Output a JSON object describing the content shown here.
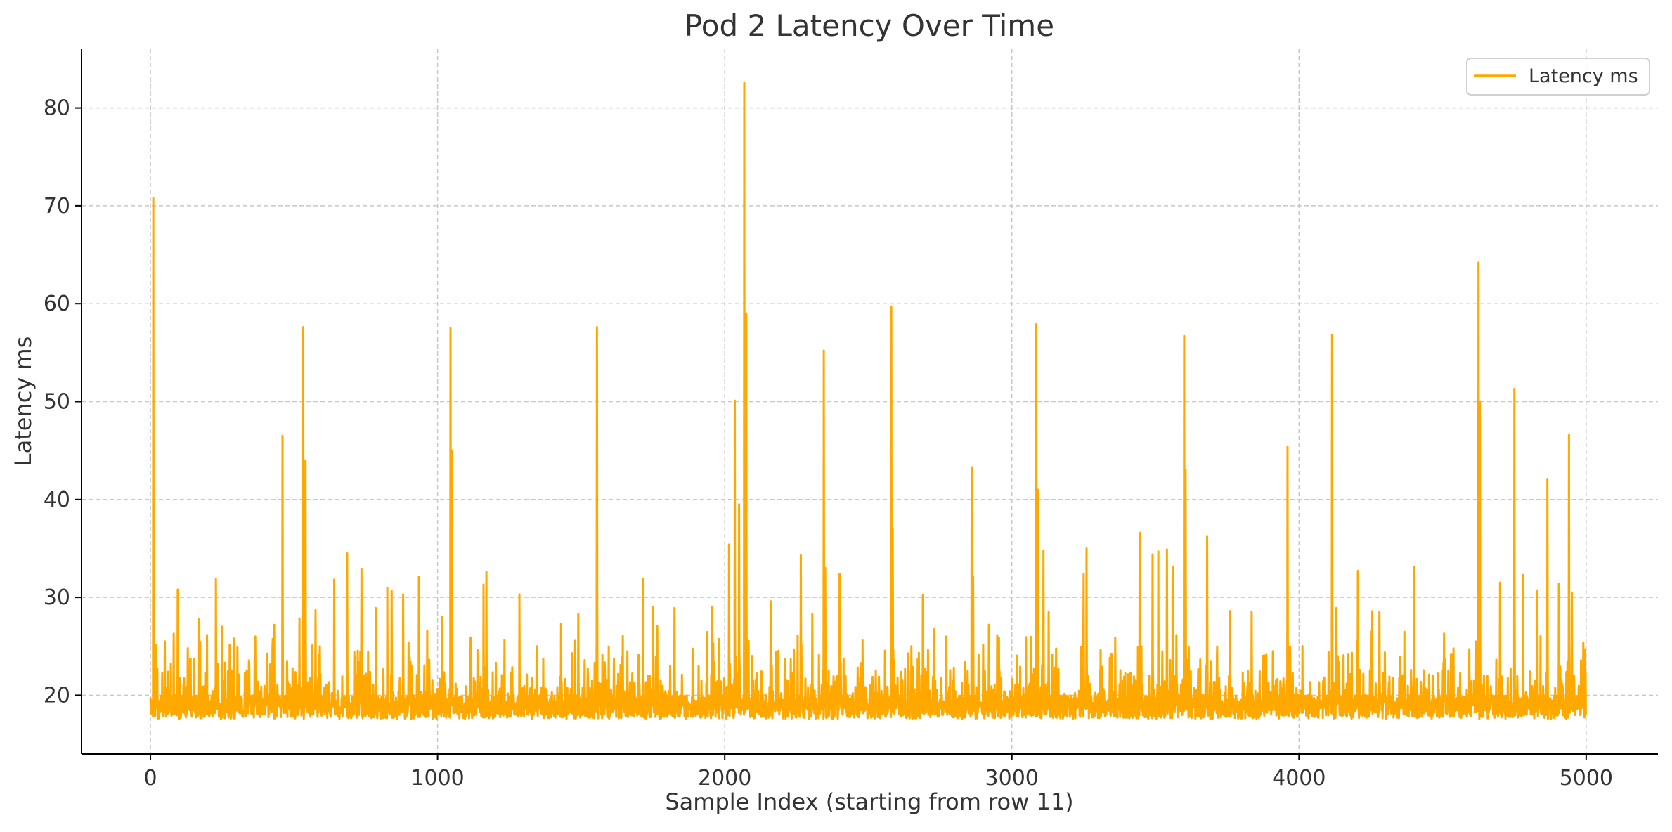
{
  "chart_data": {
    "type": "line",
    "title": "Pod 2 Latency Over Time",
    "xlabel": "Sample Index (starting from row 11)",
    "ylabel": "Latency ms",
    "xlim": [
      -240,
      5250
    ],
    "ylim": [
      14,
      86
    ],
    "xticks": [
      0,
      1000,
      2000,
      3000,
      4000,
      5000
    ],
    "yticks": [
      20,
      30,
      40,
      50,
      60,
      70,
      80
    ],
    "grid": true,
    "legend_position": "top-right",
    "series": [
      {
        "name": "Latency ms",
        "color": "#FFA800",
        "n_samples": 5000,
        "baseline_ms": 19.2,
        "min_ms": 17.2,
        "spikes": [
          [
            10,
            70.8
          ],
          [
            50,
            25.5
          ],
          [
            95,
            30.8
          ],
          [
            130,
            24.8
          ],
          [
            170,
            27.8
          ],
          [
            228,
            31.9
          ],
          [
            250,
            27.0
          ],
          [
            290,
            25.8
          ],
          [
            365,
            26.0
          ],
          [
            460,
            46.5
          ],
          [
            532,
            57.6
          ],
          [
            540,
            44.0
          ],
          [
            575,
            28.7
          ],
          [
            640,
            31.8
          ],
          [
            685,
            34.5
          ],
          [
            735,
            32.9
          ],
          [
            785,
            28.9
          ],
          [
            825,
            31.0
          ],
          [
            840,
            30.7
          ],
          [
            880,
            30.3
          ],
          [
            935,
            32.1
          ],
          [
            1015,
            28.0
          ],
          [
            1045,
            57.5
          ],
          [
            1050,
            45.0
          ],
          [
            1115,
            25.9
          ],
          [
            1160,
            31.3
          ],
          [
            1170,
            32.6
          ],
          [
            1285,
            30.3
          ],
          [
            1345,
            25.0
          ],
          [
            1430,
            27.3
          ],
          [
            1490,
            28.3
          ],
          [
            1555,
            57.6
          ],
          [
            1715,
            31.9
          ],
          [
            1750,
            29.0
          ],
          [
            1825,
            28.9
          ],
          [
            1960,
            25.3
          ],
          [
            2015,
            35.4
          ],
          [
            2035,
            50.1
          ],
          [
            2050,
            39.5
          ],
          [
            2068,
            82.6
          ],
          [
            2075,
            59.0
          ],
          [
            2160,
            29.6
          ],
          [
            2265,
            34.3
          ],
          [
            2305,
            28.3
          ],
          [
            2345,
            55.2
          ],
          [
            2350,
            33.0
          ],
          [
            2400,
            32.4
          ],
          [
            2480,
            25.6
          ],
          [
            2580,
            59.7
          ],
          [
            2585,
            37.0
          ],
          [
            2650,
            25.0
          ],
          [
            2690,
            30.2
          ],
          [
            2770,
            26.0
          ],
          [
            2860,
            43.3
          ],
          [
            2865,
            32.1
          ],
          [
            2920,
            27.2
          ],
          [
            3085,
            57.9
          ],
          [
            3090,
            41.0
          ],
          [
            3110,
            34.8
          ],
          [
            3250,
            32.4
          ],
          [
            3260,
            35.0
          ],
          [
            3360,
            25.9
          ],
          [
            3445,
            36.6
          ],
          [
            3490,
            34.4
          ],
          [
            3510,
            34.7
          ],
          [
            3540,
            34.9
          ],
          [
            3560,
            33.1
          ],
          [
            3600,
            56.7
          ],
          [
            3605,
            43.0
          ],
          [
            3680,
            36.2
          ],
          [
            3760,
            28.6
          ],
          [
            3835,
            28.5
          ],
          [
            3960,
            45.4
          ],
          [
            4115,
            56.8
          ],
          [
            4130,
            28.9
          ],
          [
            4205,
            32.7
          ],
          [
            4280,
            28.5
          ],
          [
            4400,
            33.1
          ],
          [
            4505,
            26.3
          ],
          [
            4615,
            25.5
          ],
          [
            4625,
            64.2
          ],
          [
            4630,
            50.0
          ],
          [
            4700,
            31.5
          ],
          [
            4750,
            51.3
          ],
          [
            4780,
            32.3
          ],
          [
            4830,
            30.7
          ],
          [
            4865,
            42.1
          ],
          [
            4905,
            31.4
          ],
          [
            4940,
            46.6
          ],
          [
            4950,
            30.5
          ],
          [
            4990,
            25.4
          ],
          [
            4995,
            24.7
          ]
        ]
      }
    ]
  }
}
